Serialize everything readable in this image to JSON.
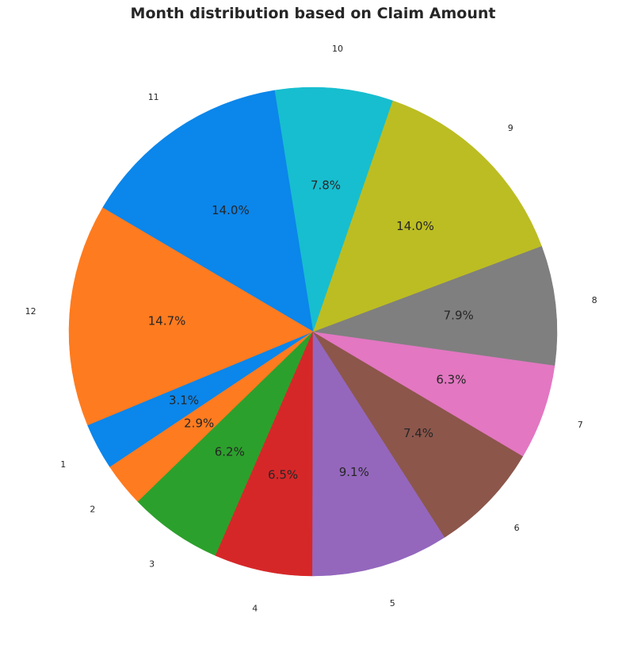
{
  "chart_data": {
    "type": "pie",
    "title": "Month distribution based on Claim Amount",
    "slices": [
      {
        "label": "1",
        "pct_label": "3.1%",
        "value": 3.1,
        "color": "#0b86ea"
      },
      {
        "label": "2",
        "pct_label": "2.9%",
        "value": 2.9,
        "color": "#ff7b1f"
      },
      {
        "label": "3",
        "pct_label": "6.2%",
        "value": 6.2,
        "color": "#2ca02c"
      },
      {
        "label": "4",
        "pct_label": "6.5%",
        "value": 6.5,
        "color": "#d62728"
      },
      {
        "label": "5",
        "pct_label": "9.1%",
        "value": 9.1,
        "color": "#9467bd"
      },
      {
        "label": "6",
        "pct_label": "7.4%",
        "value": 7.4,
        "color": "#8c564b"
      },
      {
        "label": "7",
        "pct_label": "6.3%",
        "value": 6.3,
        "color": "#e377c2"
      },
      {
        "label": "8",
        "pct_label": "7.9%",
        "value": 7.9,
        "color": "#7f7f7f"
      },
      {
        "label": "9",
        "pct_label": "14.0%",
        "value": 14.0,
        "color": "#bcbd22"
      },
      {
        "label": "10",
        "pct_label": "7.8%",
        "value": 7.8,
        "color": "#17becf"
      },
      {
        "label": "11",
        "pct_label": "14.0%",
        "value": 14.0,
        "color": "#0b86ea"
      },
      {
        "label": "12",
        "pct_label": "14.7%",
        "value": 14.7,
        "color": "#ff7b1f"
      }
    ]
  }
}
